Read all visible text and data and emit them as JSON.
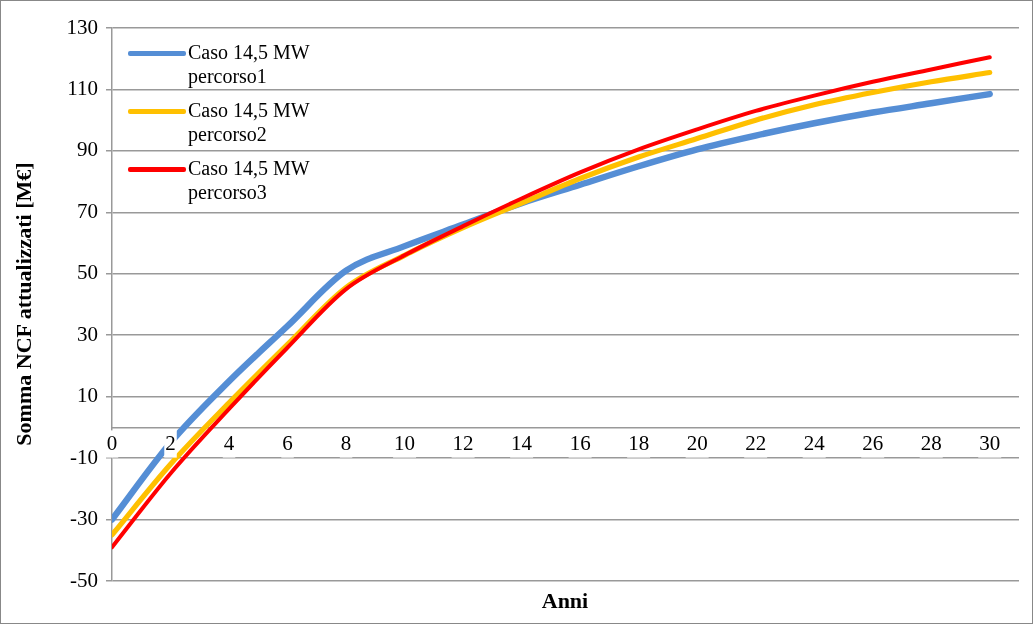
{
  "chart_data": {
    "type": "line",
    "xlabel": "Anni",
    "ylabel": "Somma NCF attualizzati [M€]",
    "x": [
      0,
      2,
      4,
      6,
      8,
      10,
      12,
      14,
      16,
      18,
      20,
      22,
      24,
      26,
      28,
      30
    ],
    "series": [
      {
        "name": "Caso 14,5 MW percorso1",
        "color": "#558ed5",
        "values": [
          -30,
          -5,
          15,
          33,
          51,
          59,
          66,
          73,
          79,
          85,
          90.5,
          95,
          99,
          102.5,
          105.5,
          108.5
        ]
      },
      {
        "name": "Caso 14,5 MW percorso2",
        "color": "#ffc000",
        "values": [
          -35,
          -12,
          8,
          27,
          45.5,
          56,
          65,
          73,
          81,
          88,
          94,
          100,
          105,
          109,
          112.5,
          115.5
        ]
      },
      {
        "name": "Caso 14,5 MW percorso3",
        "color": "#ff0000",
        "values": [
          -39,
          -15,
          6,
          26,
          45,
          56,
          65.5,
          74.5,
          83,
          90.5,
          97,
          103,
          108,
          112.5,
          116.5,
          120.5
        ]
      }
    ],
    "xlim": [
      0,
      31
    ],
    "xticks": [
      0,
      2,
      4,
      6,
      8,
      10,
      12,
      14,
      16,
      18,
      20,
      22,
      24,
      26,
      28,
      30
    ],
    "ylim": [
      -50,
      130
    ],
    "yticks": [
      -50,
      -30,
      -10,
      10,
      30,
      50,
      70,
      90,
      110,
      130
    ],
    "grid": "y",
    "legend": "top left",
    "marker": "none",
    "line_style": "solid"
  }
}
